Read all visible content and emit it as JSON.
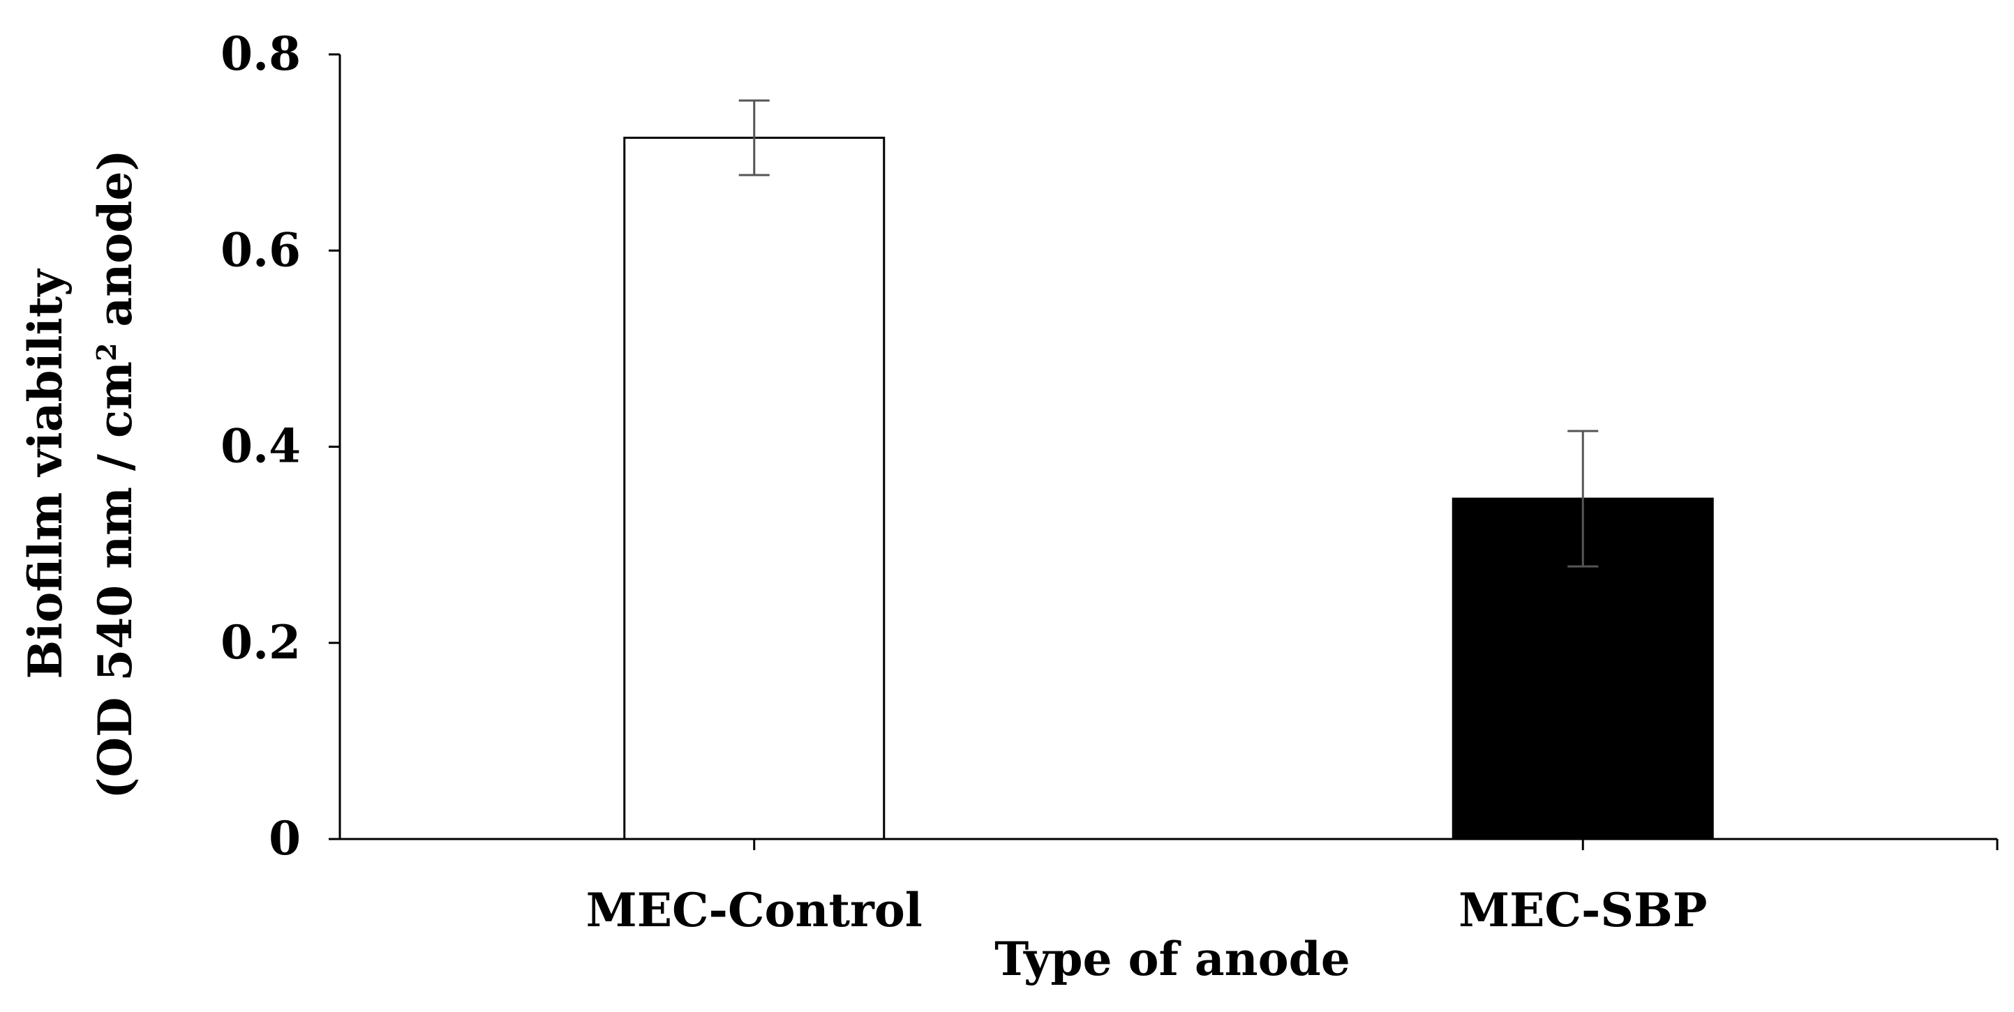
{
  "chart_data": {
    "type": "bar",
    "categories": [
      "MEC-Control",
      "MEC-SBP"
    ],
    "values": [
      0.715,
      0.347
    ],
    "errors": [
      0.038,
      0.069
    ],
    "bar_fills": [
      "#ffffff",
      "#000000"
    ],
    "ylim": [
      0,
      0.8
    ],
    "yticks": [
      0,
      0.2,
      0.4,
      0.6,
      0.8
    ],
    "ytick_labels": [
      "0",
      "0.2",
      "0.4",
      "0.6",
      "0.8"
    ],
    "xlabel": "Type of anode",
    "ylabel_line1": "Biofilm viability",
    "ylabel_line2_prefix": "(OD 540 nm / cm",
    "ylabel_line2_sup": "2",
    "ylabel_line2_suffix": " anode)",
    "title": "",
    "legend": "none",
    "grid": false
  },
  "colors": {
    "axis": "#000000",
    "error_bar": "#555555",
    "background": "#ffffff"
  }
}
